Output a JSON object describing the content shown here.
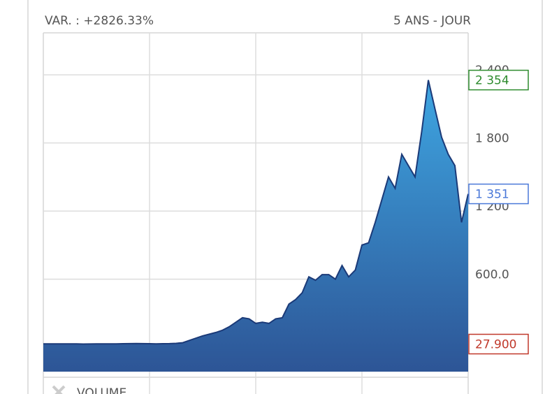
{
  "chart_data": {
    "type": "area",
    "title": "VAR. : +2826.33%",
    "period": "5 ANS - JOUR",
    "footer": "VOLUME",
    "x": [
      0,
      1,
      2,
      3,
      4,
      5,
      6,
      7,
      8,
      9,
      10,
      11,
      12,
      13,
      14,
      15,
      16,
      17,
      18,
      19,
      20,
      21,
      22,
      23,
      24,
      25,
      26,
      27,
      28,
      29,
      30,
      31,
      32,
      33,
      34,
      35,
      36,
      37,
      38,
      39,
      40,
      41,
      42,
      43,
      44,
      45,
      46,
      47,
      48,
      49,
      50,
      51,
      52,
      53,
      54,
      55,
      56,
      57,
      58,
      59,
      60,
      61,
      62,
      63,
      64
    ],
    "values": [
      30,
      30,
      30,
      30,
      30,
      30,
      27.9,
      29,
      30,
      30,
      30,
      30,
      31,
      32,
      33,
      32,
      31,
      30,
      31,
      32,
      34,
      40,
      60,
      80,
      100,
      115,
      130,
      150,
      180,
      220,
      260,
      250,
      210,
      220,
      210,
      250,
      260,
      380,
      420,
      480,
      620,
      590,
      640,
      640,
      600,
      720,
      620,
      680,
      900,
      920,
      1100,
      1300,
      1500,
      1400,
      1700,
      1600,
      1500,
      1900,
      2354,
      2100,
      1850,
      1700,
      1600,
      1100,
      1351
    ],
    "color": "#2f8fd6",
    "line_color": "#1b3a78",
    "xlim": [
      0,
      64
    ],
    "xticks": [
      16,
      32,
      48
    ],
    "ylim": [
      -215,
      2770
    ],
    "yticks": [
      {
        "value": 2400,
        "label": "2 400"
      },
      {
        "value": 1800,
        "label": "1 800"
      },
      {
        "value": 1200,
        "label": "1 200"
      },
      {
        "value": 600,
        "label": "600.0"
      }
    ],
    "grid": true,
    "annotations": [
      {
        "value": 2354,
        "label": "2 354",
        "color": "#2e8b2e"
      },
      {
        "value": 1351,
        "label": "1 351",
        "color": "#4a78d8"
      },
      {
        "value": 27.9,
        "label": "27.900",
        "color": "#c0392b"
      }
    ]
  }
}
